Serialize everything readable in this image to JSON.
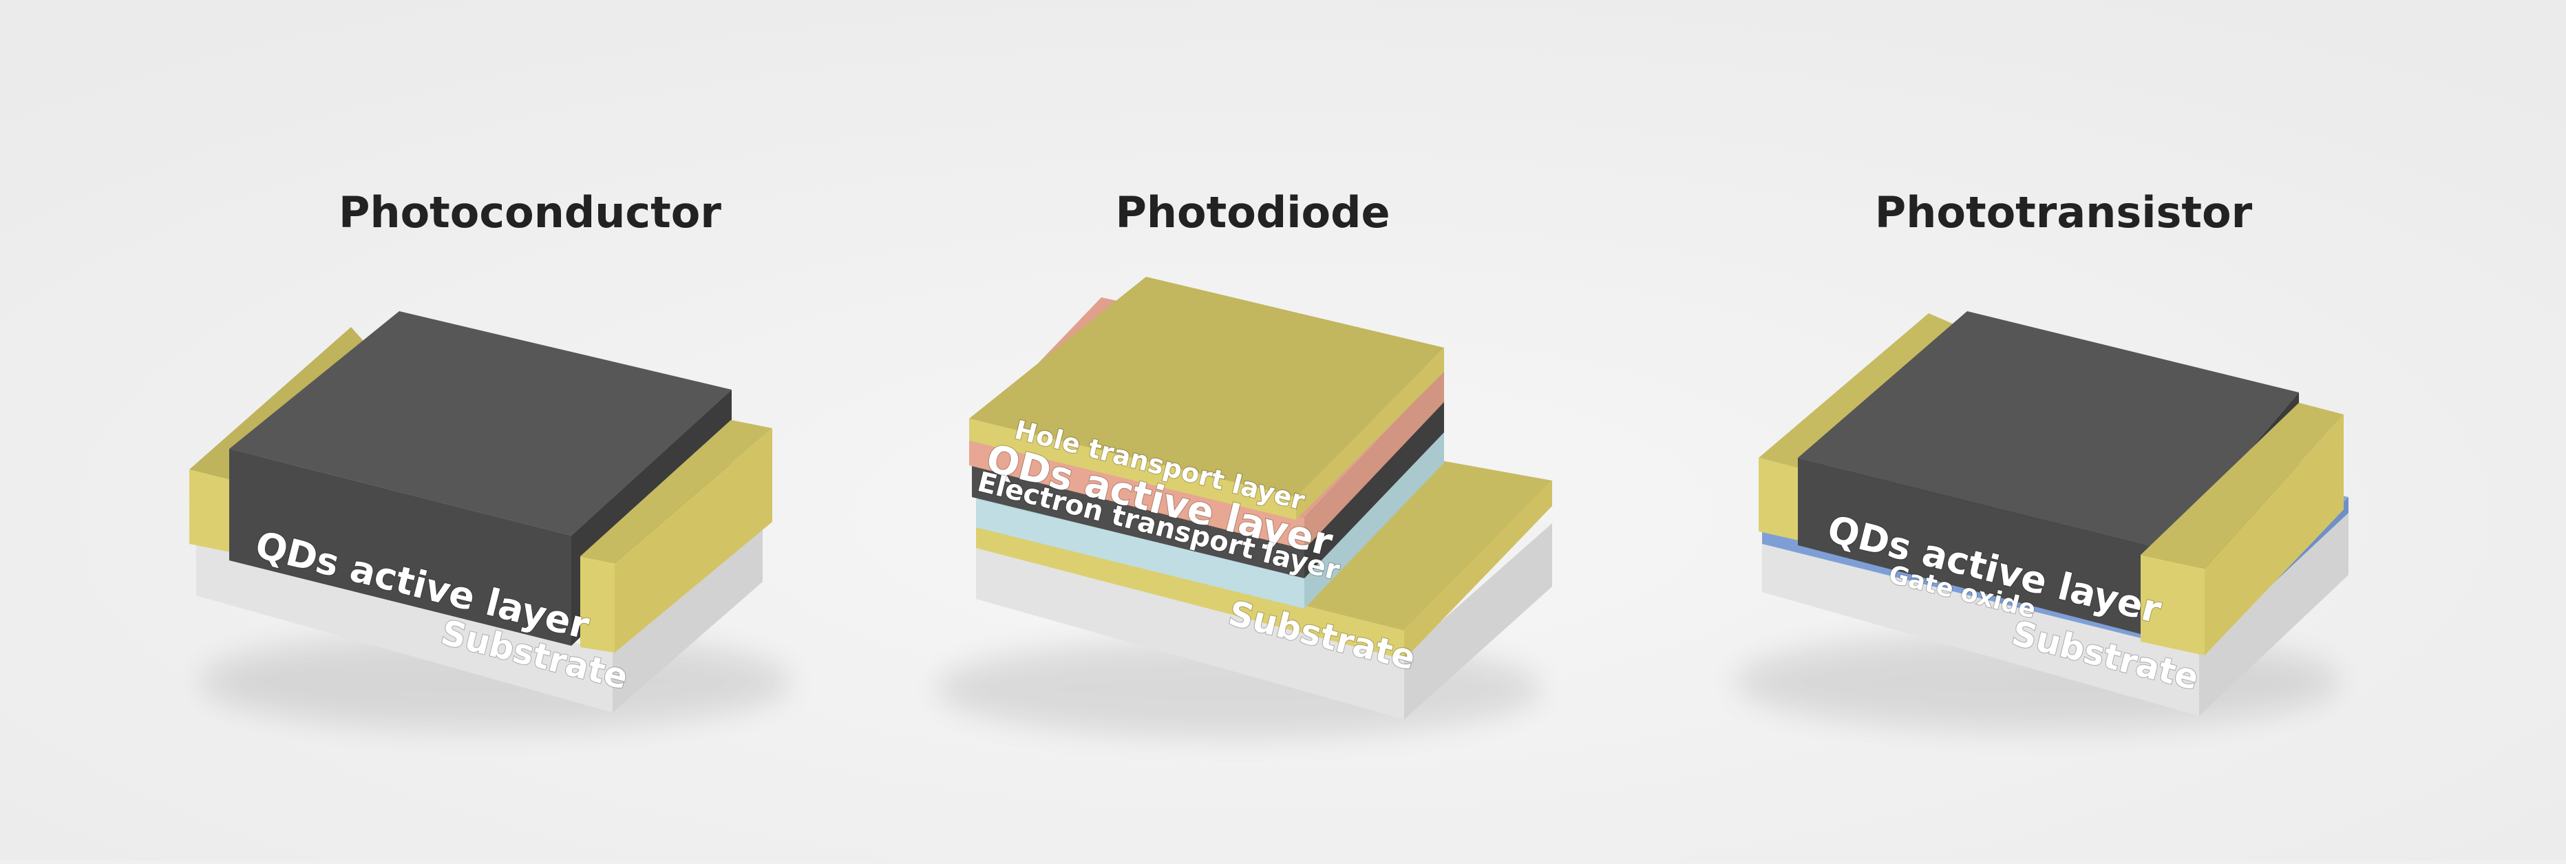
{
  "titles": {
    "photoconductor": "Photoconductor",
    "photodiode": "Photodiode",
    "phototransistor": "Phototransistor"
  },
  "photoconductor": {
    "active_label": "QDs active layer",
    "substrate_label": "Substrate"
  },
  "photodiode": {
    "htl_label": "Hole transport layer",
    "active_label": "QDs active layer",
    "etl_label": "Electron transport layer",
    "substrate_label": "Substrate"
  },
  "phototransistor": {
    "active_label": "QDs active layer",
    "gate_label": "Gate oxide",
    "substrate_label": "Substrate"
  },
  "colors": {
    "background": "#f0f0f0",
    "substrate": "#e4e4e4",
    "electrode_gold": "#d9cc6e",
    "qd_active": "#555555",
    "hole_transport": "#e7a793",
    "electron_transport": "#bfdde3",
    "gate_oxide": "#7e9fd6",
    "title_text": "#222222"
  }
}
